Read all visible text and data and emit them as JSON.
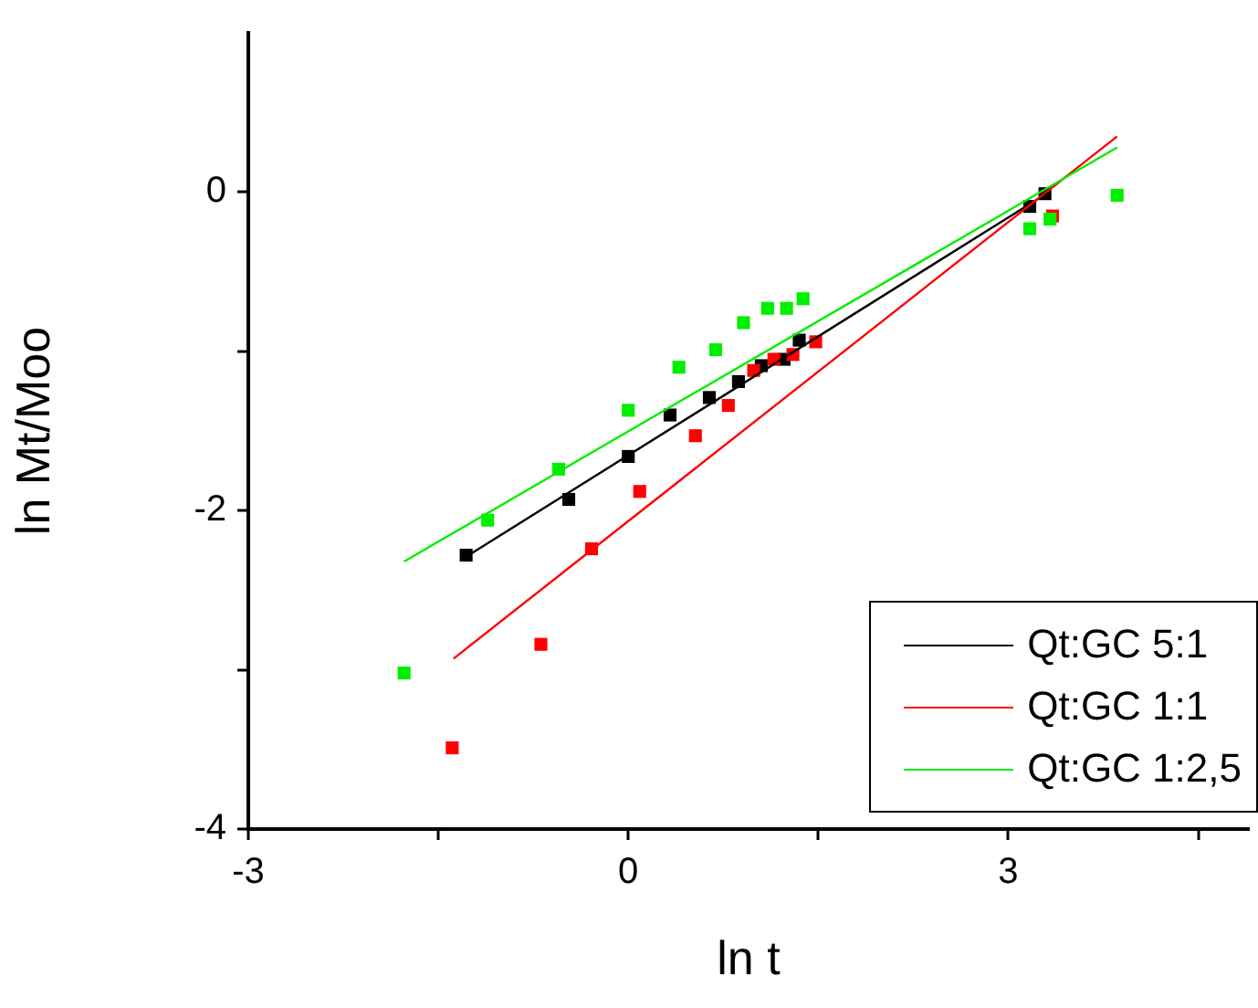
{
  "chart_data": {
    "type": "scatter",
    "xlabel": "ln t",
    "ylabel": "ln Mt/Moo",
    "xlim": [
      -3,
      4.9
    ],
    "ylim": [
      -4,
      1
    ],
    "xticks": [
      -3,
      {
        "value": -1.5,
        "label": null
      },
      0,
      {
        "value": 1.5,
        "label": null
      },
      3,
      {
        "value": 4.5,
        "label": null
      }
    ],
    "yticks": [
      -4,
      {
        "value": -3,
        "label": null
      },
      -2,
      {
        "value": -1,
        "label": null
      },
      0
    ],
    "marker": "square",
    "legend": "bottom right",
    "grid": false,
    "series": [
      {
        "type": "scatter",
        "color": "#000000",
        "x": [
          -1.28,
          -0.47,
          0,
          0.33,
          0.64,
          0.87,
          1.05,
          1.23,
          1.35,
          3.17,
          3.29
        ],
        "values": [
          -2.28,
          -1.93,
          -1.66,
          -1.4,
          -1.29,
          -1.19,
          -1.09,
          -1.05,
          -0.93,
          -0.09,
          -0.01
        ]
      },
      {
        "type": "scatter",
        "color": "#ff0000",
        "x": [
          -1.39,
          -0.69,
          -0.29,
          0.09,
          0.53,
          0.79,
          0.99,
          1.15,
          1.3,
          1.48,
          3.35
        ],
        "values": [
          -3.49,
          -2.84,
          -2.24,
          -1.88,
          -1.53,
          -1.34,
          -1.12,
          -1.05,
          -1.02,
          -0.94,
          -0.15
        ]
      },
      {
        "type": "scatter",
        "color": "#00ee00",
        "x": [
          -1.77,
          -1.11,
          -0.55,
          0,
          0.4,
          0.69,
          0.91,
          1.1,
          1.25,
          1.38,
          3.17,
          3.33,
          3.86
        ],
        "values": [
          -3.02,
          -2.06,
          -1.74,
          -1.37,
          -1.1,
          -0.99,
          -0.82,
          -0.73,
          -0.73,
          -0.67,
          -0.23,
          -0.17,
          -0.02
        ]
      },
      {
        "type": "line",
        "name": "Qt:GC 5:1",
        "color": "#000000",
        "marker": "none",
        "x": [
          -1.28,
          3.32
        ],
        "values": [
          -2.29,
          0
        ]
      },
      {
        "type": "line",
        "name": "Qt:GC 1:1",
        "color": "#ff0000",
        "marker": "none",
        "x": [
          -1.38,
          3.86
        ],
        "values": [
          -2.93,
          0.35
        ]
      },
      {
        "type": "line",
        "name": "Qt:GC 1:2,5",
        "color": "#00ee00",
        "marker": "none",
        "x": [
          -1.77,
          3.86
        ],
        "values": [
          -2.32,
          0.28
        ]
      }
    ]
  }
}
